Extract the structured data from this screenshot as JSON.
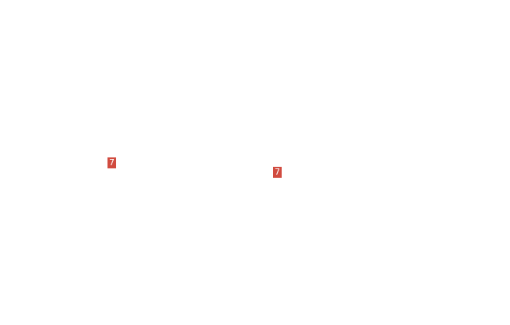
{
  "badges": [
    {
      "label": "7",
      "color": "#d14b3f"
    },
    {
      "label": "7",
      "color": "#d14b3f"
    }
  ]
}
